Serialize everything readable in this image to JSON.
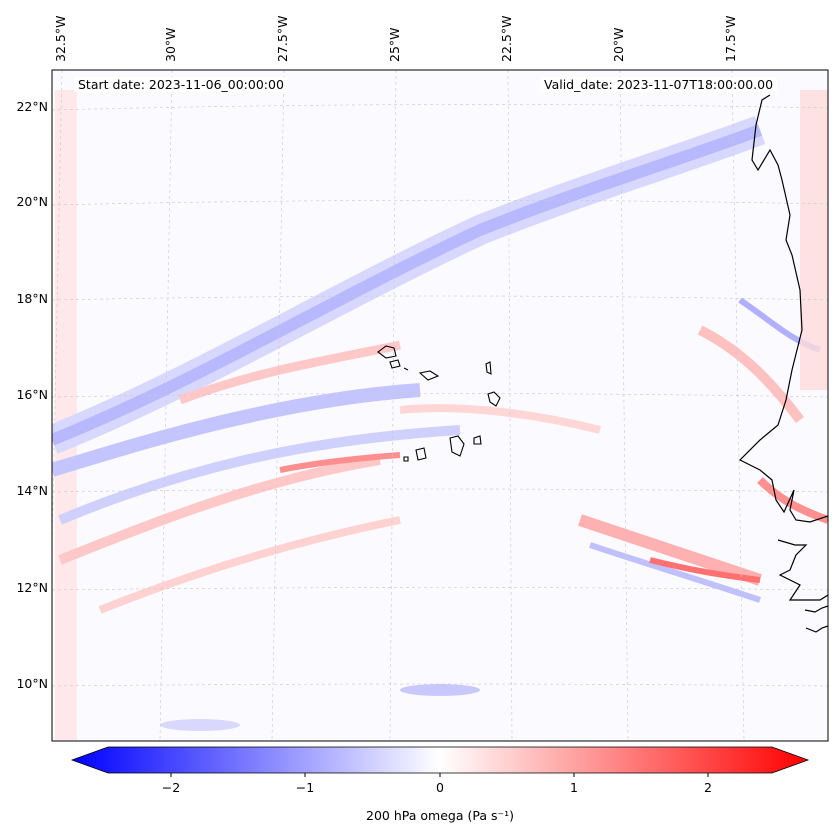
{
  "header": {
    "start_date": "Start date: 2023-11-06_00:00:00",
    "valid_date": "Valid_date: 2023-11-07T18:00:00.00"
  },
  "axes": {
    "lon_labels": [
      "32.5°W",
      "30°W",
      "27.5°W",
      "25°W",
      "22.5°W",
      "20°W",
      "17.5°W"
    ],
    "lat_labels": [
      "22°N",
      "20°N",
      "18°N",
      "16°N",
      "14°N",
      "12°N",
      "10°N"
    ]
  },
  "colorbar": {
    "ticks": [
      "−2",
      "−1",
      "0",
      "1",
      "2"
    ],
    "label": "200 hPa omega (Pa s⁻¹)",
    "range": [
      -2.6,
      2.6
    ],
    "min_color": "#0000ff",
    "max_color": "#ff0000",
    "mid_color": "#ffffff"
  },
  "map": {
    "variable": "omega",
    "level": "200 hPa",
    "coastline_color": "#000000",
    "gridline_color": "#c8c8c8"
  }
}
